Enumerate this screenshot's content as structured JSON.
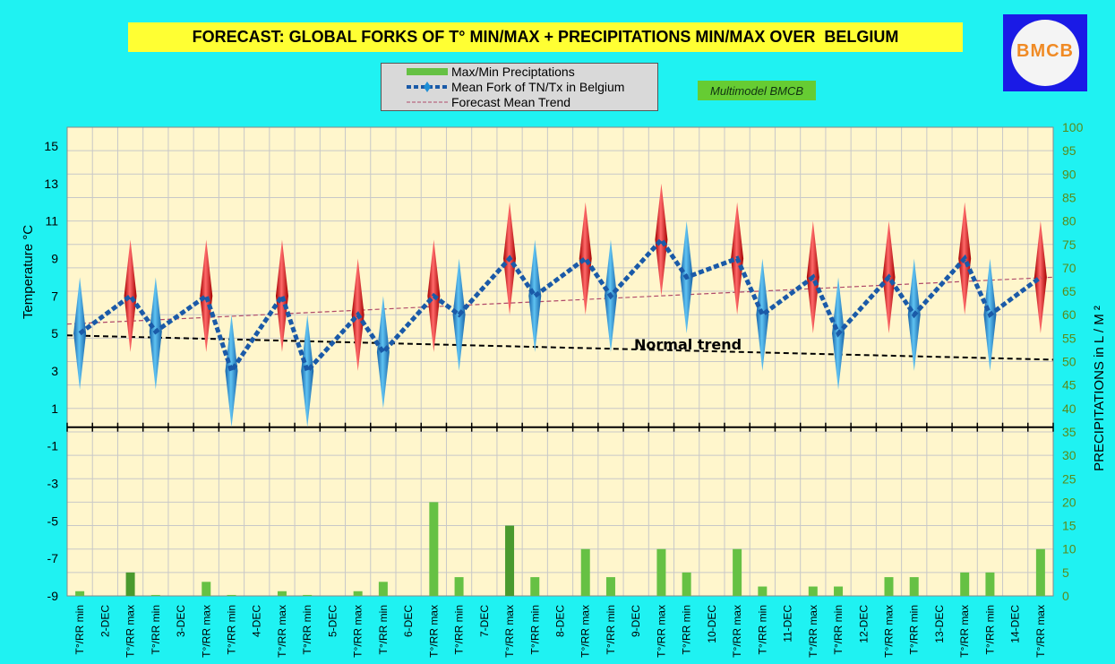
{
  "title": "FORECAST: GLOBAL FORKS OF T° MIN/MAX + PRECIPITATIONS MIN/MAX OVER  BELGIUM",
  "legend": {
    "precip": "Max/Min Preciptations",
    "mean_fork": "Mean Fork of TN/Tx in Belgium",
    "trend": "Forecast Mean Trend"
  },
  "model_tag": "Multimodel BMCB",
  "logo_text": "BMCB",
  "colors": {
    "background": "#1ff2f2",
    "plot_area": "#fff6cc",
    "grid": "#c8c8c8",
    "precip_bar": "#66c144",
    "precip_bar_dark": "#4a9a2e",
    "mean_fork_line": "#1a5aa8",
    "trend_line": "#b04a6a",
    "normal_trend_line": "#000000",
    "min_marker": "#1f8fd6",
    "max_marker": "#dd1111",
    "right_axis_text": "#5a8a1a"
  },
  "chart_data": {
    "type": "line",
    "x_labels": [
      "T°/RR min",
      "2-DEC",
      "T°/RR max",
      "T°/RR min",
      "3-DEC",
      "T°/RR max",
      "T°/RR min",
      "4-DEC",
      "T°/RR max",
      "T°/RR min",
      "5-DEC",
      "T°/RR max",
      "T°/RR min",
      "6-DEC",
      "T°/RR max",
      "T°/RR min",
      "7-DEC",
      "T°/RR max",
      "T°/RR min",
      "8-DEC",
      "T°/RR max",
      "T°/RR min",
      "9-DEC",
      "T°/RR max",
      "T°/RR min",
      "10-DEC",
      "T°/RR max",
      "T°/RR min",
      "11-DEC",
      "T°/RR max",
      "T°/RR min",
      "12-DEC",
      "T°/RR max",
      "T°/RR min",
      "13-DEC",
      "T°/RR max",
      "T°/RR min",
      "14-DEC",
      "T°/RR max"
    ],
    "points": [
      {
        "label": "T°/RR min",
        "day": "2-DEC",
        "type": "min",
        "mean": 5,
        "low": 2,
        "high": 8,
        "precip": 1
      },
      {
        "label": "T°/RR max",
        "day": "2-DEC",
        "type": "max",
        "mean": 7,
        "low": 4,
        "high": 10,
        "precip": 5
      },
      {
        "label": "T°/RR min",
        "day": "3-DEC",
        "type": "min",
        "mean": 5.1,
        "low": 2,
        "high": 8,
        "precip": 0.2
      },
      {
        "label": "T°/RR max",
        "day": "3-DEC",
        "type": "max",
        "mean": 7,
        "low": 4,
        "high": 10,
        "precip": 3
      },
      {
        "label": "T°/RR min",
        "day": "4-DEC",
        "type": "min",
        "mean": 3,
        "low": 0,
        "high": 6,
        "precip": 0.2
      },
      {
        "label": "T°/RR max",
        "day": "4-DEC",
        "type": "max",
        "mean": 7,
        "low": 4,
        "high": 10,
        "precip": 1
      },
      {
        "label": "T°/RR min",
        "day": "5-DEC",
        "type": "min",
        "mean": 3,
        "low": 0,
        "high": 6,
        "precip": 0.2
      },
      {
        "label": "T°/RR max",
        "day": "5-DEC",
        "type": "max",
        "mean": 6,
        "low": 3,
        "high": 9,
        "precip": 1
      },
      {
        "label": "T°/RR min",
        "day": "6-DEC",
        "type": "min",
        "mean": 4,
        "low": 1,
        "high": 7,
        "precip": 3
      },
      {
        "label": "T°/RR max",
        "day": "6-DEC",
        "type": "max",
        "mean": 7,
        "low": 4,
        "high": 10,
        "precip": 20
      },
      {
        "label": "T°/RR min",
        "day": "7-DEC",
        "type": "min",
        "mean": 6,
        "low": 3,
        "high": 9,
        "precip": 4
      },
      {
        "label": "T°/RR max",
        "day": "7-DEC",
        "type": "max",
        "mean": 9,
        "low": 6,
        "high": 12,
        "precip": 15
      },
      {
        "label": "T°/RR min",
        "day": "8-DEC",
        "type": "min",
        "mean": 7,
        "low": 4,
        "high": 10,
        "precip": 4
      },
      {
        "label": "T°/RR max",
        "day": "8-DEC",
        "type": "max",
        "mean": 9,
        "low": 6,
        "high": 12,
        "precip": 10
      },
      {
        "label": "T°/RR min",
        "day": "9-DEC",
        "type": "min",
        "mean": 7,
        "low": 4,
        "high": 10,
        "precip": 4
      },
      {
        "label": "T°/RR max",
        "day": "9-DEC",
        "type": "max",
        "mean": 10,
        "low": 7,
        "high": 13,
        "precip": 10
      },
      {
        "label": "T°/RR min",
        "day": "10-DEC",
        "type": "min",
        "mean": 8,
        "low": 5,
        "high": 11,
        "precip": 5
      },
      {
        "label": "T°/RR max",
        "day": "10-DEC",
        "type": "max",
        "mean": 9,
        "low": 6,
        "high": 12,
        "precip": 10
      },
      {
        "label": "T°/RR min",
        "day": "11-DEC",
        "type": "min",
        "mean": 6,
        "low": 3,
        "high": 9,
        "precip": 2
      },
      {
        "label": "T°/RR max",
        "day": "11-DEC",
        "type": "max",
        "mean": 8,
        "low": 5,
        "high": 11,
        "precip": 2
      },
      {
        "label": "T°/RR min",
        "day": "12-DEC",
        "type": "min",
        "mean": 5,
        "low": 2,
        "high": 8,
        "precip": 2
      },
      {
        "label": "T°/RR max",
        "day": "12-DEC",
        "type": "max",
        "mean": 8,
        "low": 5,
        "high": 11,
        "precip": 4
      },
      {
        "label": "T°/RR min",
        "day": "13-DEC",
        "type": "min",
        "mean": 6,
        "low": 3,
        "high": 9,
        "precip": 4
      },
      {
        "label": "T°/RR max",
        "day": "13-DEC",
        "type": "max",
        "mean": 9,
        "low": 6,
        "high": 12,
        "precip": 5
      },
      {
        "label": "T°/RR min",
        "day": "14-DEC",
        "type": "min",
        "mean": 6,
        "low": 3,
        "high": 9,
        "precip": 5
      },
      {
        "label": "T°/RR max",
        "day": "14-DEC",
        "type": "max",
        "mean": 8,
        "low": 5,
        "high": 11,
        "precip": 10
      }
    ],
    "left_axis": {
      "label": "Temperature  °C",
      "min": -9,
      "max": 16,
      "ticks": [
        -9,
        -7,
        -5,
        -3,
        -1,
        1,
        3,
        5,
        7,
        9,
        11,
        13,
        15
      ]
    },
    "right_axis": {
      "label": "PRECIPITATIONS in L / M ²",
      "min": 0,
      "max": 100,
      "ticks": [
        0,
        5,
        10,
        15,
        20,
        25,
        30,
        35,
        40,
        45,
        50,
        55,
        60,
        65,
        70,
        75,
        80,
        85,
        90,
        95,
        100
      ]
    },
    "forecast_trend": {
      "start": 5.5,
      "end": 8
    },
    "normal_trend": {
      "label": "Normal trend",
      "start": 4.9,
      "end": 3.6
    },
    "zero_line": 0,
    "grid": true,
    "legend_position": "top-center"
  }
}
